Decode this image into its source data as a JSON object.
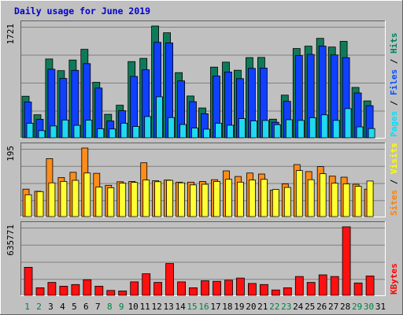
{
  "chart_data": {
    "type": "bar",
    "title": "Daily usage for June 2019",
    "categories": [
      "1",
      "2",
      "3",
      "4",
      "5",
      "6",
      "7",
      "8",
      "9",
      "10",
      "11",
      "12",
      "13",
      "14",
      "15",
      "16",
      "17",
      "18",
      "19",
      "20",
      "21",
      "22",
      "23",
      "24",
      "25",
      "26",
      "27",
      "28",
      "29",
      "30",
      "31"
    ],
    "weekend_days": [
      "1",
      "2",
      "8",
      "9",
      "15",
      "16",
      "22",
      "23",
      "29",
      "30"
    ],
    "panels": [
      {
        "id": "pages-files-hits",
        "max_label": "1721",
        "ylim": [
          0,
          1721
        ],
        "legend": [
          "Pages",
          "Files",
          "Hits"
        ],
        "legend_colors": [
          "#00e0ff",
          "#0050ff",
          "#008060"
        ],
        "series": [
          {
            "name": "Hits",
            "color": "#0f7a59",
            "values": [
              640,
              355,
              1213,
              1034,
              1198,
              1362,
              855,
              362,
              502,
              1173,
              1223,
              1721,
              1617,
              1004,
              643,
              459,
              1088,
              1165,
              1040,
              1235,
              1238,
              287,
              657,
              1374,
              1411,
              1531,
              1398,
              1485,
              776,
              568,
              0
            ]
          },
          {
            "name": "Files",
            "color": "#1040ff",
            "values": [
              552,
              286,
              1056,
              914,
              1039,
              1142,
              766,
              259,
              417,
              945,
              1047,
              1470,
              1461,
              876,
              556,
              371,
              952,
              1013,
              912,
              1069,
              1074,
              240,
              561,
              1265,
              1283,
              1412,
              1276,
              1234,
              691,
              494,
              0
            ]
          },
          {
            "name": "Pages",
            "color": "#20d8f0",
            "values": [
              223,
              110,
              183,
              274,
              193,
              271,
              139,
              136,
              225,
              175,
              327,
              631,
              312,
              205,
              150,
              133,
              224,
              194,
              296,
              261,
              267,
              202,
              279,
              268,
              308,
              354,
              268,
              450,
              168,
              143,
              0
            ]
          }
        ]
      },
      {
        "id": "sites-visits",
        "max_label": "195",
        "ylim": [
          0,
          195
        ],
        "legend": [
          "Sites",
          "Visits"
        ],
        "legend_colors": [
          "#ff8000",
          "#ffff00"
        ],
        "series": [
          {
            "name": "Visits",
            "color": "#ff8c1a",
            "values": [
              78,
              72,
              165,
              111,
              126,
              195,
              123,
              89,
              99,
              100,
              153,
              102,
              104,
              98,
              98,
              100,
              105,
              130,
              114,
              124,
              121,
              75,
              93,
              148,
              128,
              142,
              115,
              112,
              92,
              78,
              0
            ]
          },
          {
            "name": "Sites",
            "color": "#ffff33",
            "values": [
              62,
              71,
              96,
              100,
              103,
              124,
              84,
              82,
              95,
              97,
              104,
              99,
              103,
              96,
              90,
              92,
              100,
              106,
              98,
              104,
              106,
              77,
              83,
              131,
              105,
              122,
              95,
              93,
              86,
              101,
              0
            ]
          }
        ]
      },
      {
        "id": "kbytes",
        "max_label": "635771",
        "ylim": [
          0,
          635771
        ],
        "legend": [
          "KBytes"
        ],
        "legend_colors": [
          "#ff0000"
        ],
        "series": [
          {
            "name": "KBytes",
            "color": "#ff1010",
            "values": [
              260000,
              70000,
              120000,
              85000,
              100000,
              145000,
              85000,
              45000,
              40000,
              125000,
              200000,
              120000,
              295000,
              125000,
              70000,
              135000,
              130000,
              140000,
              160000,
              110000,
              100000,
              50000,
              70000,
              175000,
              120000,
              190000,
              175000,
              635771,
              115000,
              180000,
              0
            ]
          }
        ]
      }
    ]
  }
}
